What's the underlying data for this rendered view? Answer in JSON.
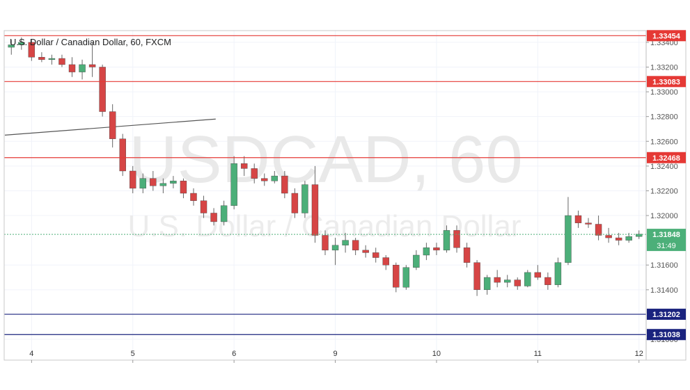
{
  "chart_data": {
    "type": "candlestick",
    "title": "U.S. Dollar / Canadian Dollar, 60, FXCM",
    "watermark": {
      "symbol": "USDCAD, 60",
      "name": "U.S. Dollar / Canadian Dollar"
    },
    "y_axis": {
      "ylim": [
        1.31,
        1.3345
      ],
      "ticks": [
        "1.33400",
        "1.33200",
        "1.33000",
        "1.32800",
        "1.32600",
        "1.32400",
        "1.32200",
        "1.32000",
        "1.31600",
        "1.31400",
        "1.31000"
      ],
      "tick_values": [
        1.334,
        1.332,
        1.33,
        1.328,
        1.326,
        1.324,
        1.322,
        1.32,
        1.316,
        1.314,
        1.31
      ]
    },
    "x_axis": {
      "labels": [
        "4",
        "5",
        "6",
        "9",
        "10",
        "11",
        "12"
      ],
      "label_bar_index": [
        2,
        12,
        22,
        32,
        42,
        52,
        62
      ]
    },
    "levels": [
      {
        "price": 1.33454,
        "label": "1.33454",
        "color": "#e53935"
      },
      {
        "price": 1.33083,
        "label": "1.33083",
        "color": "#e53935"
      },
      {
        "price": 1.32468,
        "label": "1.32468",
        "color": "#e53935"
      },
      {
        "price": 1.31202,
        "label": "1.31202",
        "color": "#1a237e"
      },
      {
        "price": 1.31038,
        "label": "1.31038",
        "color": "#1a237e"
      }
    ],
    "current": {
      "price": 1.31848,
      "label": "1.31848",
      "countdown": "31:49",
      "color": "#4caf79"
    },
    "trendline": {
      "start": {
        "bar": 0,
        "price": 1.3265
      },
      "end": {
        "bar": 19,
        "price": 1.3278
      },
      "color": "#555555"
    },
    "colors": {
      "up": "#4caf79",
      "down": "#d64545",
      "wick": "#666666"
    },
    "candles": [
      [
        1.3336,
        1.3342,
        1.333,
        1.3338
      ],
      [
        1.3338,
        1.3344,
        1.3334,
        1.334
      ],
      [
        1.334,
        1.3342,
        1.3325,
        1.3328
      ],
      [
        1.3328,
        1.3332,
        1.3324,
        1.3326
      ],
      [
        1.3326,
        1.333,
        1.3322,
        1.3327
      ],
      [
        1.3327,
        1.333,
        1.332,
        1.3322
      ],
      [
        1.3322,
        1.3328,
        1.3312,
        1.3316
      ],
      [
        1.3316,
        1.3326,
        1.331,
        1.3322
      ],
      [
        1.3322,
        1.334,
        1.3312,
        1.332
      ],
      [
        1.332,
        1.3322,
        1.328,
        1.3284
      ],
      [
        1.3284,
        1.329,
        1.3255,
        1.3262
      ],
      [
        1.3262,
        1.3266,
        1.3232,
        1.3236
      ],
      [
        1.3236,
        1.324,
        1.3218,
        1.3222
      ],
      [
        1.3222,
        1.3234,
        1.3218,
        1.323
      ],
      [
        1.323,
        1.3236,
        1.322,
        1.3224
      ],
      [
        1.3224,
        1.323,
        1.3218,
        1.3226
      ],
      [
        1.3226,
        1.3232,
        1.3222,
        1.3228
      ],
      [
        1.3228,
        1.323,
        1.3214,
        1.3218
      ],
      [
        1.3218,
        1.3222,
        1.3208,
        1.3212
      ],
      [
        1.3212,
        1.3216,
        1.3198,
        1.3202
      ],
      [
        1.3202,
        1.3206,
        1.3192,
        1.3195
      ],
      [
        1.3195,
        1.3212,
        1.3192,
        1.3208
      ],
      [
        1.3208,
        1.3248,
        1.3205,
        1.3242
      ],
      [
        1.3242,
        1.3248,
        1.3232,
        1.3238
      ],
      [
        1.3238,
        1.3242,
        1.3226,
        1.323
      ],
      [
        1.323,
        1.3234,
        1.3224,
        1.3228
      ],
      [
        1.3228,
        1.3236,
        1.3226,
        1.3232
      ],
      [
        1.3232,
        1.3236,
        1.3214,
        1.3218
      ],
      [
        1.3218,
        1.3222,
        1.3198,
        1.3202
      ],
      [
        1.3202,
        1.3228,
        1.3198,
        1.3225
      ],
      [
        1.3225,
        1.324,
        1.3178,
        1.3184
      ],
      [
        1.3184,
        1.3188,
        1.3168,
        1.3172
      ],
      [
        1.3172,
        1.3182,
        1.316,
        1.3176
      ],
      [
        1.3176,
        1.3186,
        1.317,
        1.318
      ],
      [
        1.318,
        1.3182,
        1.3168,
        1.3172
      ],
      [
        1.3172,
        1.3176,
        1.3166,
        1.317
      ],
      [
        1.317,
        1.3174,
        1.3162,
        1.3166
      ],
      [
        1.3166,
        1.3168,
        1.3156,
        1.316
      ],
      [
        1.316,
        1.3162,
        1.3138,
        1.3142
      ],
      [
        1.3142,
        1.316,
        1.314,
        1.3158
      ],
      [
        1.3158,
        1.3172,
        1.3156,
        1.3168
      ],
      [
        1.3168,
        1.3178,
        1.3164,
        1.3174
      ],
      [
        1.3174,
        1.3178,
        1.3168,
        1.3172
      ],
      [
        1.3172,
        1.3192,
        1.317,
        1.3188
      ],
      [
        1.3188,
        1.3192,
        1.317,
        1.3174
      ],
      [
        1.3174,
        1.3178,
        1.3158,
        1.3162
      ],
      [
        1.3162,
        1.3164,
        1.3135,
        1.314
      ],
      [
        1.314,
        1.3152,
        1.3136,
        1.315
      ],
      [
        1.315,
        1.3156,
        1.3142,
        1.3146
      ],
      [
        1.3146,
        1.3152,
        1.3142,
        1.3148
      ],
      [
        1.3148,
        1.315,
        1.314,
        1.3143
      ],
      [
        1.3143,
        1.3156,
        1.3142,
        1.3154
      ],
      [
        1.3154,
        1.316,
        1.3148,
        1.315
      ],
      [
        1.315,
        1.3154,
        1.314,
        1.3144
      ],
      [
        1.3144,
        1.3166,
        1.3142,
        1.3162
      ],
      [
        1.3162,
        1.3215,
        1.316,
        1.32
      ],
      [
        1.32,
        1.3204,
        1.319,
        1.3194
      ],
      [
        1.3194,
        1.3198,
        1.319,
        1.3193
      ],
      [
        1.3193,
        1.32,
        1.318,
        1.3184
      ],
      [
        1.3184,
        1.319,
        1.3178,
        1.3182
      ],
      [
        1.3182,
        1.3186,
        1.3176,
        1.318
      ],
      [
        1.318,
        1.3186,
        1.3178,
        1.3183
      ],
      [
        1.3183,
        1.3188,
        1.3181,
        1.3185
      ]
    ]
  }
}
